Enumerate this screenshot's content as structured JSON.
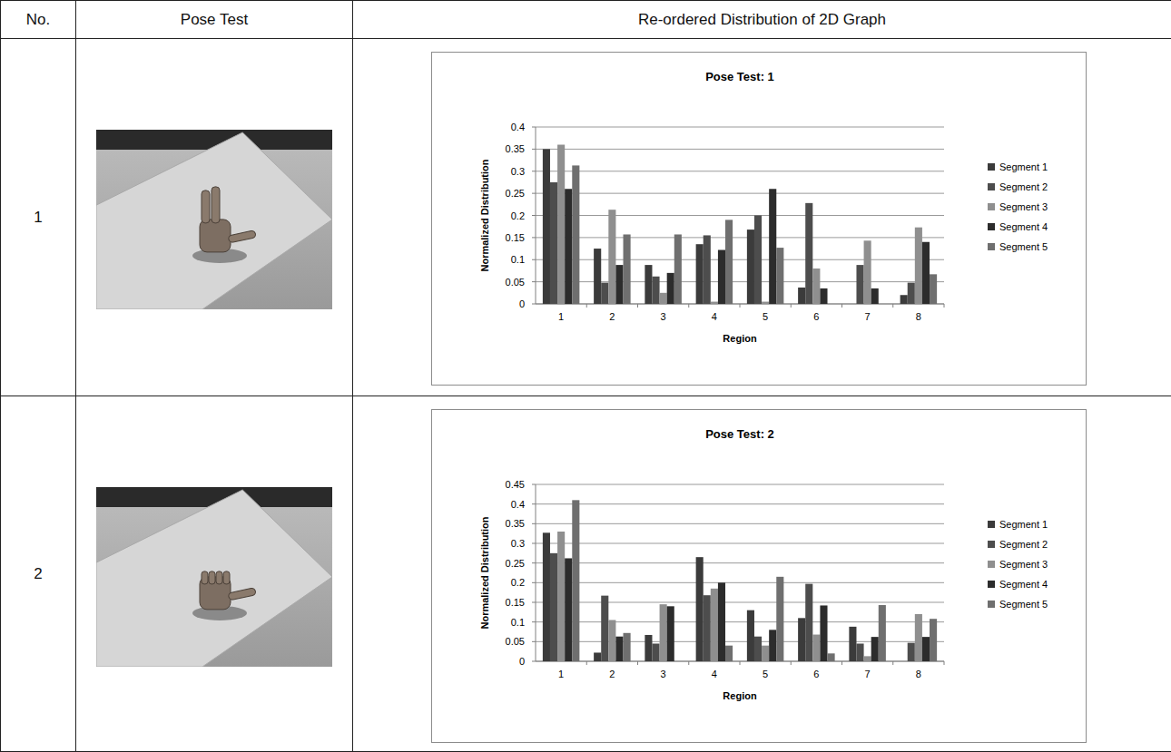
{
  "table": {
    "headers": [
      "No.",
      "Pose Test",
      "Re-ordered Distribution of 2D Graph"
    ],
    "rows": [
      {
        "no": "1"
      },
      {
        "no": "2"
      }
    ]
  },
  "chart_data": [
    {
      "type": "bar",
      "title": "Pose Test: 1",
      "x_label": "Region",
      "y_label": "Normalized Distribution",
      "categories": [
        "1",
        "2",
        "3",
        "4",
        "5",
        "6",
        "7",
        "8"
      ],
      "series": [
        {
          "name": "Segment 1",
          "color": "#3b3b3b",
          "values": [
            0.35,
            0.125,
            0.088,
            0.135,
            0.168,
            0.037,
            0,
            0.02
          ]
        },
        {
          "name": "Segment 2",
          "color": "#4d4d4d",
          "values": [
            0.275,
            0.048,
            0.062,
            0.155,
            0.2,
            0.228,
            0.088,
            0.048
          ]
        },
        {
          "name": "Segment 3",
          "color": "#8f8f8f",
          "values": [
            0.36,
            0.213,
            0.025,
            0.005,
            0.005,
            0.08,
            0.143,
            0.173
          ]
        },
        {
          "name": "Segment 4",
          "color": "#2c2c2c",
          "values": [
            0.26,
            0.088,
            0.07,
            0.122,
            0.26,
            0.035,
            0.035,
            0.14
          ]
        },
        {
          "name": "Segment 5",
          "color": "#6f6f6f",
          "values": [
            0.313,
            0.157,
            0.157,
            0.19,
            0.127,
            0,
            0,
            0.067
          ]
        }
      ],
      "ylim": [
        0,
        0.4
      ],
      "yticks": [
        0,
        0.05,
        0.1,
        0.15,
        0.2,
        0.25,
        0.3,
        0.35,
        0.4
      ],
      "grid": true,
      "legend": "right"
    },
    {
      "type": "bar",
      "title": "Pose Test: 2",
      "x_label": "Region",
      "y_label": "Normalized Distribution",
      "categories": [
        "1",
        "2",
        "3",
        "4",
        "5",
        "6",
        "7",
        "8"
      ],
      "series": [
        {
          "name": "Segment 1",
          "color": "#3b3b3b",
          "values": [
            0.327,
            0.022,
            0.067,
            0.265,
            0.13,
            0.11,
            0.088,
            0
          ]
        },
        {
          "name": "Segment 2",
          "color": "#4d4d4d",
          "values": [
            0.275,
            0.167,
            0.045,
            0.168,
            0.063,
            0.197,
            0.045,
            0.047
          ]
        },
        {
          "name": "Segment 3",
          "color": "#8f8f8f",
          "values": [
            0.33,
            0.105,
            0.145,
            0.185,
            0.04,
            0.068,
            0.013,
            0.12
          ]
        },
        {
          "name": "Segment 4",
          "color": "#2c2c2c",
          "values": [
            0.262,
            0.063,
            0.14,
            0.2,
            0.08,
            0.142,
            0.062,
            0.062
          ]
        },
        {
          "name": "Segment 5",
          "color": "#6f6f6f",
          "values": [
            0.41,
            0.072,
            0,
            0.04,
            0.215,
            0.02,
            0.143,
            0.108
          ]
        }
      ],
      "ylim": [
        0,
        0.45
      ],
      "yticks": [
        0,
        0.05,
        0.1,
        0.15,
        0.2,
        0.25,
        0.3,
        0.35,
        0.4,
        0.45
      ],
      "grid": true,
      "legend": "right"
    }
  ]
}
